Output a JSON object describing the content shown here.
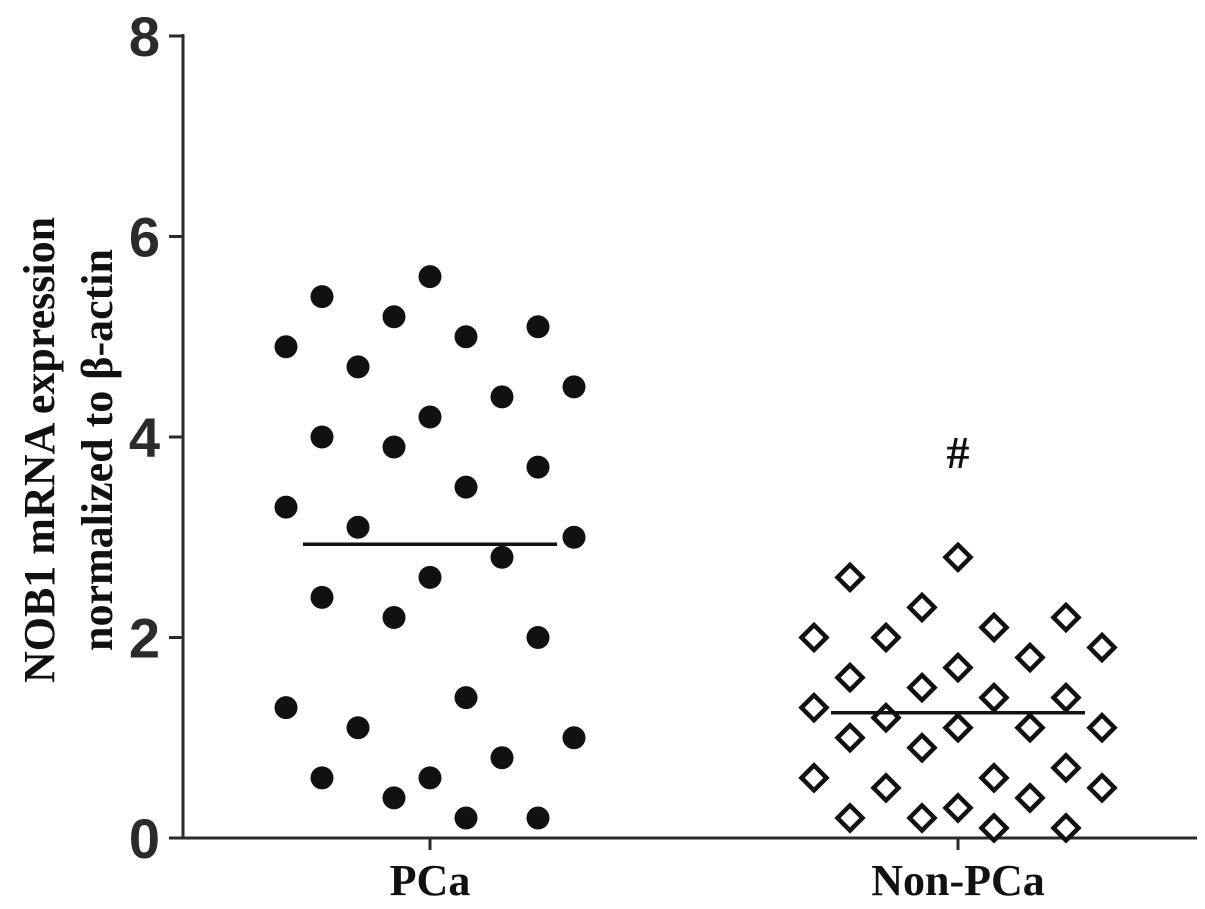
{
  "chart_data": {
    "type": "scatter",
    "title": "",
    "ylabel_line1": "NOB1 mRNA expression",
    "ylabel_line2": "normalized to β-actin",
    "categories": [
      "PCa",
      "Non-PCa"
    ],
    "ylim": [
      0,
      8
    ],
    "yticks": [
      "0",
      "2",
      "4",
      "6",
      "8"
    ],
    "grid": false,
    "legend": "none",
    "series": [
      {
        "category": "PCa",
        "marker": "filled-circle",
        "color": "#111111",
        "mean": 2.93,
        "values": [
          5.6,
          5.4,
          5.2,
          5.1,
          5.0,
          4.9,
          4.7,
          4.5,
          4.4,
          4.2,
          4.0,
          3.9,
          3.7,
          3.5,
          3.3,
          3.1,
          3.0,
          2.8,
          2.6,
          2.4,
          2.2,
          2.0,
          1.4,
          1.3,
          1.1,
          1.0,
          0.8,
          0.6,
          0.6,
          0.4,
          0.2,
          0.2
        ]
      },
      {
        "category": "Non-PCa",
        "marker": "open-diamond",
        "color": "#111111",
        "mean": 1.25,
        "values": [
          2.8,
          2.6,
          2.3,
          2.2,
          2.1,
          2.0,
          2.0,
          1.9,
          1.8,
          1.7,
          1.6,
          1.5,
          1.4,
          1.4,
          1.3,
          1.2,
          1.1,
          1.1,
          1.1,
          1.0,
          0.9,
          0.7,
          0.6,
          0.6,
          0.5,
          0.5,
          0.4,
          0.3,
          0.2,
          0.2,
          0.1,
          0.1
        ]
      }
    ],
    "annotations": [
      {
        "text": "#",
        "category": "Non-PCa",
        "y": 3.85
      }
    ]
  }
}
